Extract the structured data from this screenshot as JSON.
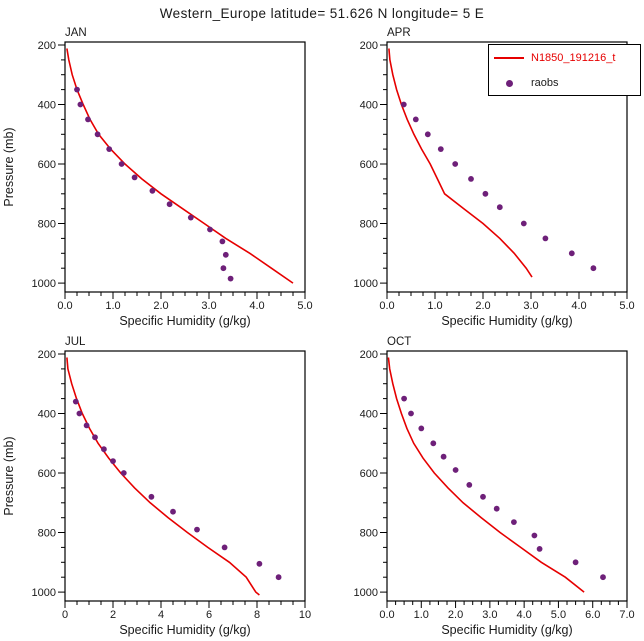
{
  "title": "Western_Europe  latitude= 51.626 N  longitude= 5 E",
  "legend": {
    "model_label": "N1850_191216_t",
    "raobs_label": "raobs"
  },
  "colors": {
    "model": "#e60000",
    "raobs": "#6e2079",
    "axis": "#000000",
    "background": "#ffffff"
  },
  "chart_data": [
    {
      "type": "line+scatter",
      "panel": "JAN",
      "xlabel": "Specific Humidity (g/kg)",
      "ylabel": "Pressure (mb)",
      "show_ylabel": true,
      "xlim": [
        0,
        5
      ],
      "x_minor_step": 0.25,
      "xticks": [
        {
          "v": 0,
          "l": "0.0"
        },
        {
          "v": 1,
          "l": "1.0"
        },
        {
          "v": 2,
          "l": "2.0"
        },
        {
          "v": 3,
          "l": "3.0"
        },
        {
          "v": 4,
          "l": "4.0"
        },
        {
          "v": 5,
          "l": "5.0"
        }
      ],
      "ylim": [
        190,
        1030
      ],
      "y_minor_step": 50,
      "yticks": [
        {
          "v": 200,
          "l": "200"
        },
        {
          "v": 400,
          "l": "400"
        },
        {
          "v": 600,
          "l": "600"
        },
        {
          "v": 800,
          "l": "800"
        },
        {
          "v": 1000,
          "l": "1000"
        }
      ],
      "series": [
        {
          "name": "N1850_191216_t",
          "type": "line",
          "color": "#e60000",
          "points": [
            [
              0.04,
              212
            ],
            [
              0.08,
              250
            ],
            [
              0.15,
              300
            ],
            [
              0.25,
              350
            ],
            [
              0.38,
              400
            ],
            [
              0.52,
              450
            ],
            [
              0.7,
              500
            ],
            [
              0.95,
              550
            ],
            [
              1.25,
              600
            ],
            [
              1.6,
              650
            ],
            [
              2.0,
              700
            ],
            [
              2.45,
              750
            ],
            [
              2.9,
              800
            ],
            [
              3.35,
              850
            ],
            [
              3.85,
              900
            ],
            [
              4.3,
              950
            ],
            [
              4.75,
              1000
            ]
          ]
        },
        {
          "name": "raobs",
          "type": "scatter",
          "color": "#6e2079",
          "points": [
            [
              0.25,
              350
            ],
            [
              0.32,
              400
            ],
            [
              0.48,
              450
            ],
            [
              0.68,
              500
            ],
            [
              0.92,
              550
            ],
            [
              1.18,
              600
            ],
            [
              1.45,
              645
            ],
            [
              1.82,
              690
            ],
            [
              2.18,
              735
            ],
            [
              2.62,
              780
            ],
            [
              3.02,
              820
            ],
            [
              3.28,
              860
            ],
            [
              3.35,
              905
            ],
            [
              3.3,
              950
            ],
            [
              3.45,
              985
            ]
          ]
        }
      ]
    },
    {
      "type": "line+scatter",
      "panel": "APR",
      "xlabel": "Specific Humidity (g/kg)",
      "ylabel": "Pressure (mb)",
      "show_ylabel": false,
      "xlim": [
        0,
        5
      ],
      "x_minor_step": 0.25,
      "xticks": [
        {
          "v": 0,
          "l": "0.0"
        },
        {
          "v": 1,
          "l": "1.0"
        },
        {
          "v": 2,
          "l": "2.0"
        },
        {
          "v": 3,
          "l": "3.0"
        },
        {
          "v": 4,
          "l": "4.0"
        },
        {
          "v": 5,
          "l": "5.0"
        }
      ],
      "ylim": [
        190,
        1030
      ],
      "y_minor_step": 50,
      "yticks": [
        {
          "v": 200,
          "l": "200"
        },
        {
          "v": 400,
          "l": "400"
        },
        {
          "v": 600,
          "l": "600"
        },
        {
          "v": 800,
          "l": "800"
        },
        {
          "v": 1000,
          "l": "1000"
        }
      ],
      "series": [
        {
          "name": "N1850_191216_t",
          "type": "line",
          "color": "#e60000",
          "points": [
            [
              0.04,
              212
            ],
            [
              0.06,
              250
            ],
            [
              0.12,
              300
            ],
            [
              0.2,
              350
            ],
            [
              0.3,
              400
            ],
            [
              0.42,
              450
            ],
            [
              0.56,
              500
            ],
            [
              0.72,
              550
            ],
            [
              0.9,
              600
            ],
            [
              1.05,
              650
            ],
            [
              1.2,
              700
            ],
            [
              1.6,
              750
            ],
            [
              2.0,
              800
            ],
            [
              2.35,
              850
            ],
            [
              2.65,
              900
            ],
            [
              2.9,
              950
            ],
            [
              3.02,
              980
            ]
          ]
        },
        {
          "name": "raobs",
          "type": "scatter",
          "color": "#6e2079",
          "points": [
            [
              0.35,
              400
            ],
            [
              0.6,
              450
            ],
            [
              0.85,
              500
            ],
            [
              1.12,
              550
            ],
            [
              1.42,
              600
            ],
            [
              1.75,
              650
            ],
            [
              2.05,
              700
            ],
            [
              2.35,
              745
            ],
            [
              2.85,
              800
            ],
            [
              3.3,
              850
            ],
            [
              3.85,
              900
            ],
            [
              4.3,
              950
            ]
          ]
        }
      ]
    },
    {
      "type": "line+scatter",
      "panel": "JUL",
      "xlabel": "Specific Humidity (g/kg)",
      "ylabel": "Pressure (mb)",
      "show_ylabel": true,
      "xlim": [
        0,
        10
      ],
      "x_minor_step": 0.5,
      "xticks": [
        {
          "v": 0,
          "l": "0"
        },
        {
          "v": 2,
          "l": "2"
        },
        {
          "v": 4,
          "l": "4"
        },
        {
          "v": 6,
          "l": "6"
        },
        {
          "v": 8,
          "l": "8"
        },
        {
          "v": 10,
          "l": "10"
        }
      ],
      "ylim": [
        190,
        1030
      ],
      "y_minor_step": 50,
      "yticks": [
        {
          "v": 200,
          "l": "200"
        },
        {
          "v": 400,
          "l": "400"
        },
        {
          "v": 600,
          "l": "600"
        },
        {
          "v": 800,
          "l": "800"
        },
        {
          "v": 1000,
          "l": "1000"
        }
      ],
      "series": [
        {
          "name": "N1850_191216_t",
          "type": "line",
          "color": "#e60000",
          "points": [
            [
              0.08,
              212
            ],
            [
              0.12,
              250
            ],
            [
              0.28,
              300
            ],
            [
              0.48,
              350
            ],
            [
              0.72,
              400
            ],
            [
              1.02,
              450
            ],
            [
              1.38,
              500
            ],
            [
              1.82,
              550
            ],
            [
              2.32,
              600
            ],
            [
              2.9,
              650
            ],
            [
              3.55,
              700
            ],
            [
              4.3,
              750
            ],
            [
              5.1,
              800
            ],
            [
              5.95,
              850
            ],
            [
              6.85,
              900
            ],
            [
              7.55,
              950
            ],
            [
              7.95,
              1000
            ],
            [
              8.1,
              1010
            ]
          ]
        },
        {
          "name": "raobs",
          "type": "scatter",
          "color": "#6e2079",
          "points": [
            [
              0.45,
              360
            ],
            [
              0.6,
              400
            ],
            [
              0.9,
              440
            ],
            [
              1.25,
              480
            ],
            [
              1.62,
              520
            ],
            [
              2.0,
              560
            ],
            [
              2.45,
              600
            ],
            [
              3.6,
              680
            ],
            [
              4.5,
              730
            ],
            [
              5.5,
              790
            ],
            [
              6.65,
              850
            ],
            [
              8.1,
              905
            ],
            [
              8.9,
              950
            ]
          ]
        }
      ]
    },
    {
      "type": "line+scatter",
      "panel": "OCT",
      "xlabel": "Specific Humidity (g/kg)",
      "ylabel": "Pressure (mb)",
      "show_ylabel": false,
      "xlim": [
        0,
        7
      ],
      "x_minor_step": 0.25,
      "xticks": [
        {
          "v": 0,
          "l": "0.0"
        },
        {
          "v": 1,
          "l": "1.0"
        },
        {
          "v": 2,
          "l": "2.0"
        },
        {
          "v": 3,
          "l": "3.0"
        },
        {
          "v": 4,
          "l": "4.0"
        },
        {
          "v": 5,
          "l": "5.0"
        },
        {
          "v": 6,
          "l": "6.0"
        },
        {
          "v": 7,
          "l": "7.0"
        }
      ],
      "ylim": [
        190,
        1030
      ],
      "y_minor_step": 50,
      "yticks": [
        {
          "v": 200,
          "l": "200"
        },
        {
          "v": 400,
          "l": "400"
        },
        {
          "v": 600,
          "l": "600"
        },
        {
          "v": 800,
          "l": "800"
        },
        {
          "v": 1000,
          "l": "1000"
        }
      ],
      "series": [
        {
          "name": "N1850_191216_t",
          "type": "line",
          "color": "#e60000",
          "points": [
            [
              0.04,
              212
            ],
            [
              0.08,
              250
            ],
            [
              0.17,
              300
            ],
            [
              0.28,
              350
            ],
            [
              0.42,
              400
            ],
            [
              0.58,
              450
            ],
            [
              0.78,
              500
            ],
            [
              1.05,
              550
            ],
            [
              1.38,
              600
            ],
            [
              1.78,
              650
            ],
            [
              2.22,
              700
            ],
            [
              2.75,
              750
            ],
            [
              3.3,
              800
            ],
            [
              3.9,
              850
            ],
            [
              4.5,
              900
            ],
            [
              5.2,
              950
            ],
            [
              5.75,
              1000
            ]
          ]
        },
        {
          "name": "raobs",
          "type": "scatter",
          "color": "#6e2079",
          "points": [
            [
              0.5,
              350
            ],
            [
              0.7,
              400
            ],
            [
              1.0,
              450
            ],
            [
              1.35,
              500
            ],
            [
              1.65,
              545
            ],
            [
              2.0,
              590
            ],
            [
              2.4,
              640
            ],
            [
              2.8,
              680
            ],
            [
              3.2,
              720
            ],
            [
              3.7,
              765
            ],
            [
              4.3,
              810
            ],
            [
              4.45,
              855
            ],
            [
              5.5,
              900
            ],
            [
              6.3,
              950
            ]
          ]
        }
      ]
    }
  ]
}
